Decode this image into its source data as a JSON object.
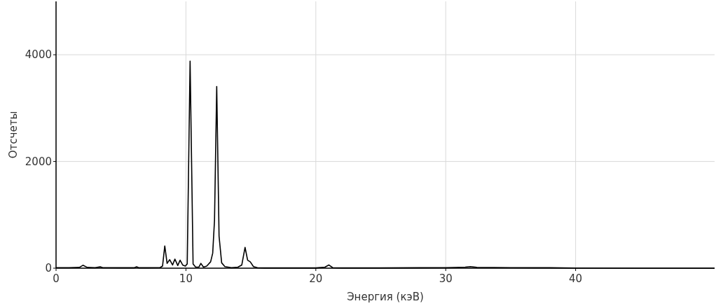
{
  "chart_data": {
    "type": "line",
    "xlabel": "Энергия (кэВ)",
    "ylabel": "Отсчеты",
    "xlim": [
      0,
      50.7
    ],
    "ylim": [
      0,
      5000
    ],
    "xticks": [
      0,
      10,
      20,
      30,
      40
    ],
    "yticks": [
      0,
      2000,
      4000
    ],
    "grid": true,
    "line_style": "solid",
    "marker": "none",
    "series": [
      {
        "color": "#000000",
        "x": [
          0,
          1,
          1.8,
          2.07,
          2.4,
          3,
          3.4,
          3.6,
          4,
          5,
          6,
          6.2,
          6.4,
          7,
          8,
          8.2,
          8.37,
          8.55,
          8.75,
          8.97,
          9.15,
          9.37,
          9.55,
          9.75,
          9.95,
          10.1,
          10.32,
          10.55,
          10.75,
          11,
          11.15,
          11.35,
          11.6,
          11.9,
          12.06,
          12.2,
          12.37,
          12.55,
          12.75,
          13,
          13.5,
          14,
          14.3,
          14.55,
          14.75,
          14.95,
          15.2,
          15.5,
          16,
          18,
          20,
          20.7,
          21,
          21.3,
          22,
          25,
          28,
          30,
          31.5,
          31.9,
          32.4,
          35,
          38,
          40,
          45,
          50.7
        ],
        "values": [
          10,
          10,
          15,
          55,
          15,
          10,
          25,
          10,
          10,
          8,
          8,
          25,
          8,
          8,
          10,
          40,
          417,
          90,
          160,
          60,
          170,
          50,
          150,
          60,
          40,
          80,
          3880,
          80,
          20,
          20,
          90,
          20,
          40,
          120,
          280,
          900,
          3405,
          600,
          100,
          30,
          10,
          20,
          60,
          390,
          150,
          120,
          30,
          10,
          5,
          5,
          5,
          20,
          60,
          10,
          5,
          5,
          8,
          10,
          20,
          30,
          15,
          10,
          8,
          3,
          0,
          0
        ]
      }
    ]
  }
}
